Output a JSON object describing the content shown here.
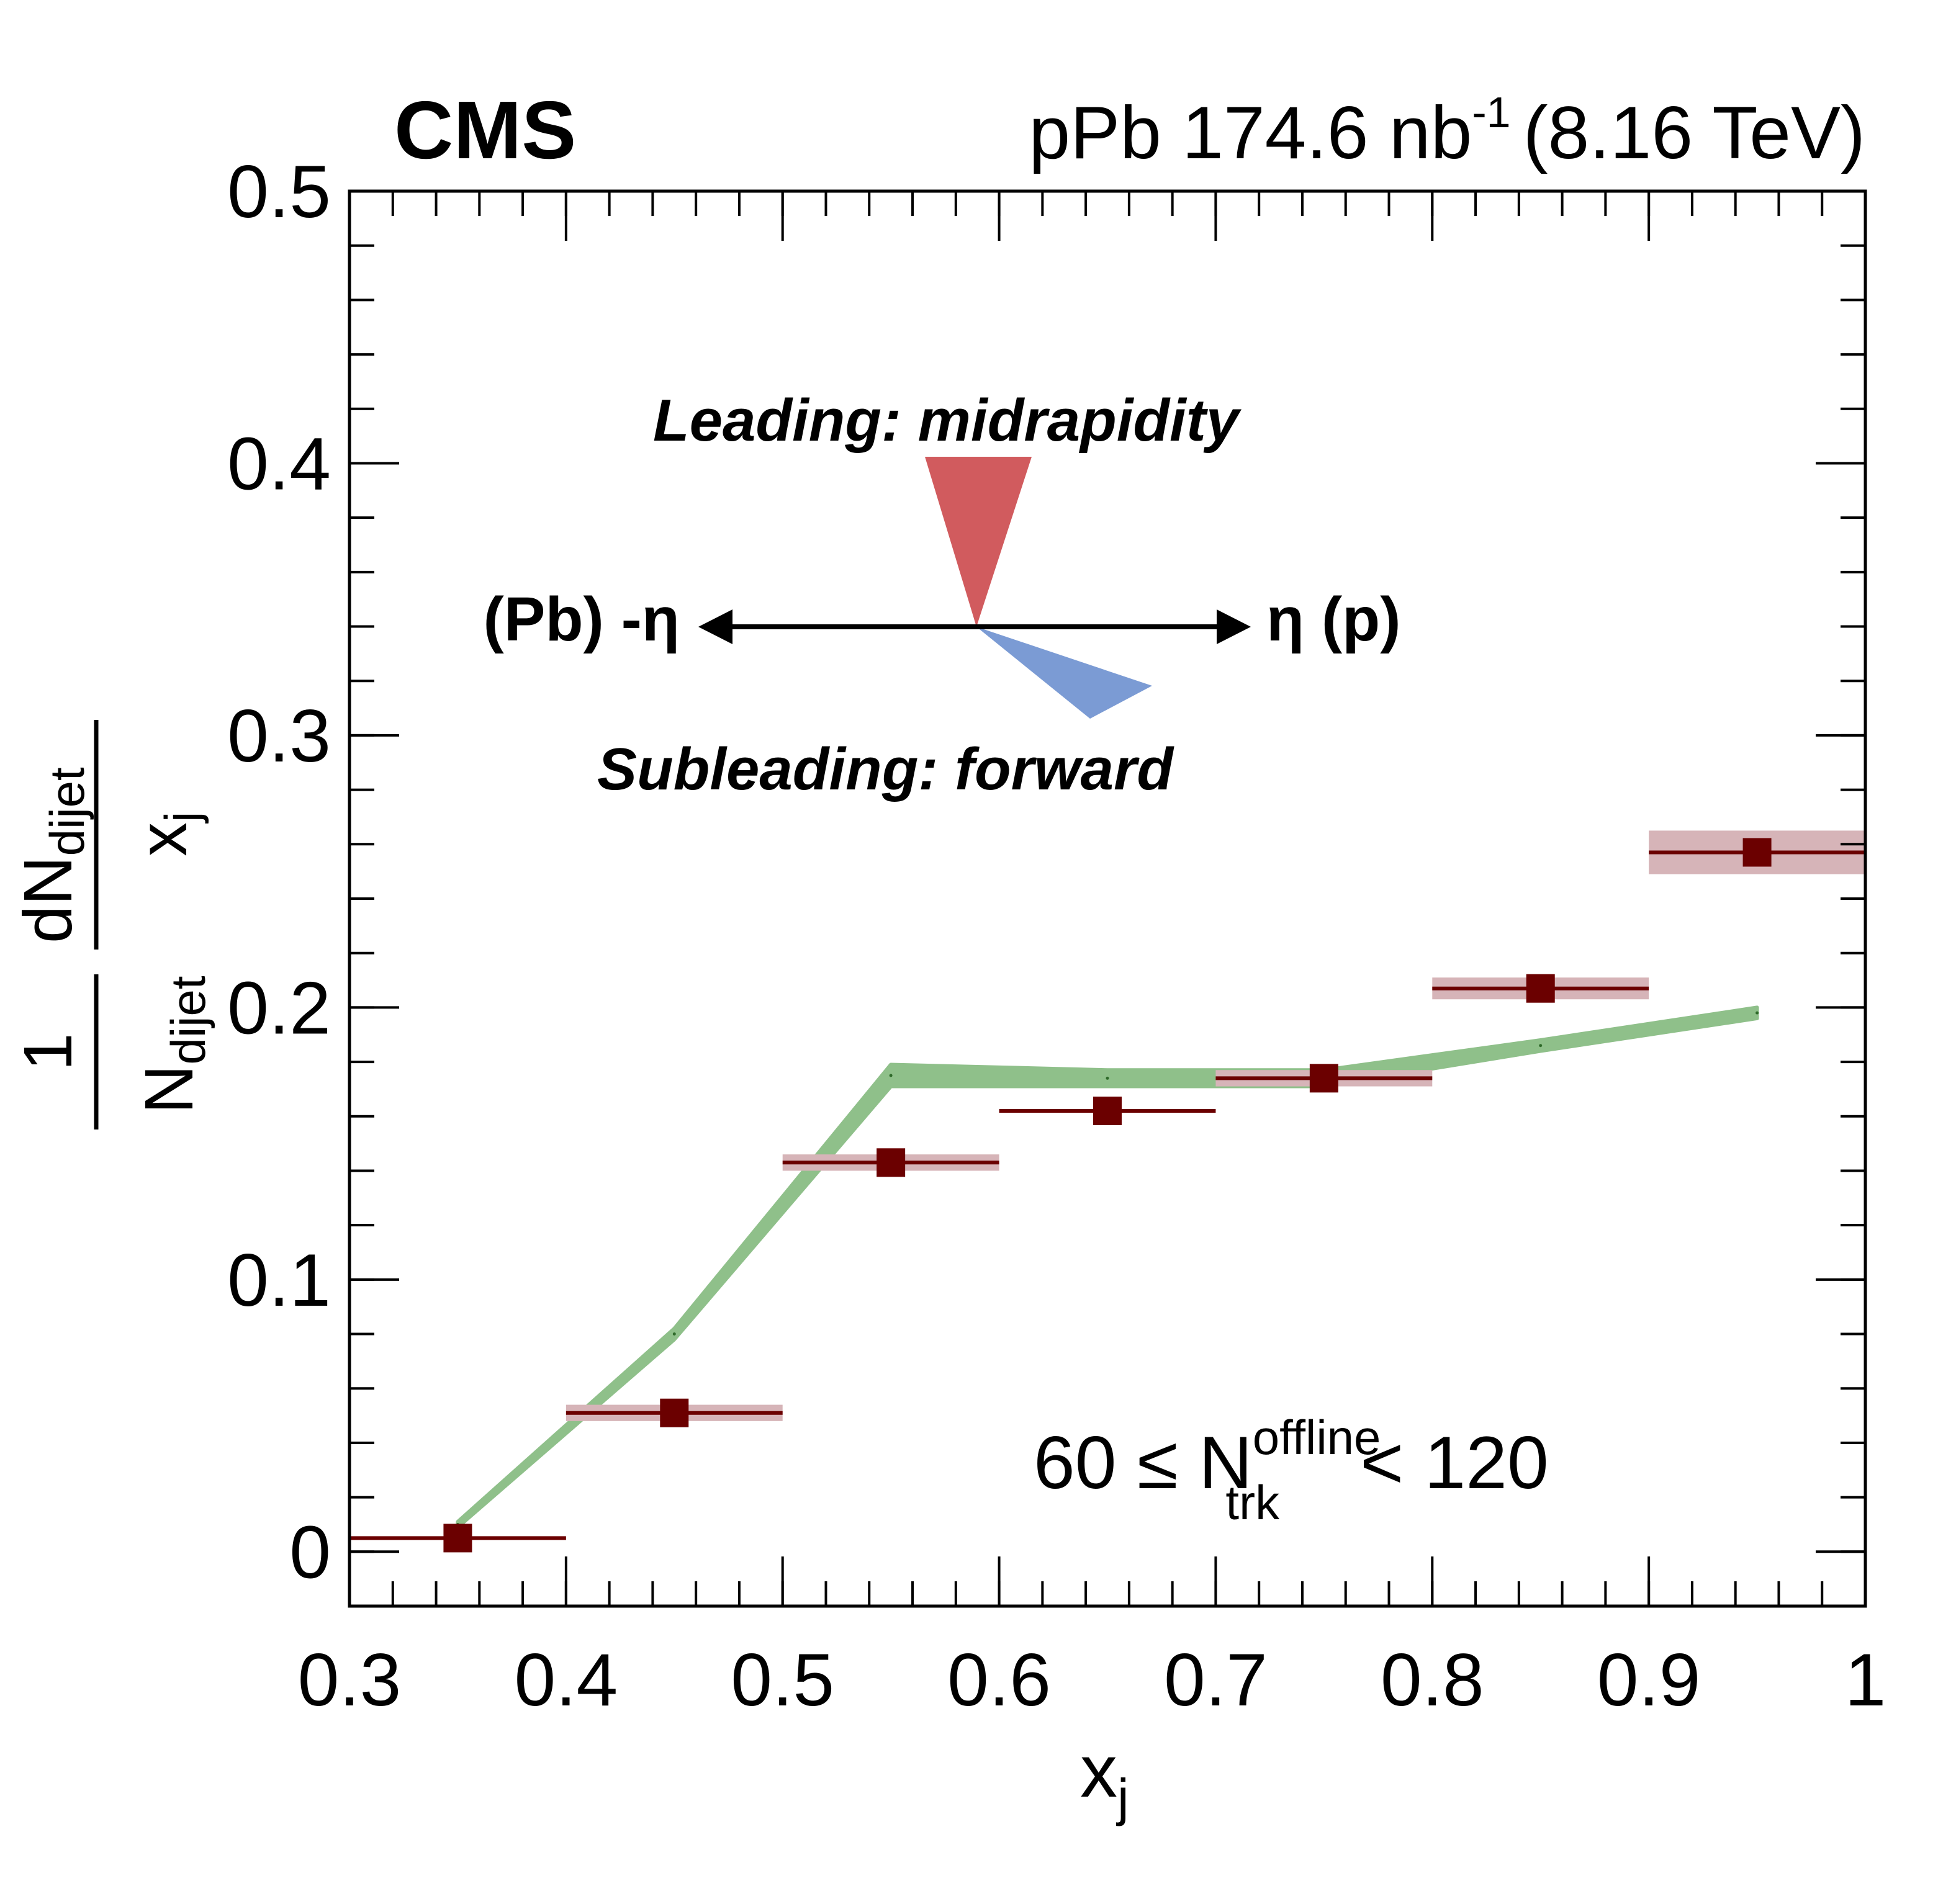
{
  "header": {
    "experiment": "CMS",
    "collision": "pPb 174.6 nb",
    "lumi_exp": "-1",
    "energy": "(8.16 TeV)"
  },
  "annotations": {
    "leading": "Leading: midrapidity",
    "subleading": "Subleading: forward",
    "left_arrow_label": "(Pb) -η",
    "right_arrow_label": "η (p)",
    "selection_lhs": "60 ≤ N",
    "selection_sup": "offline",
    "selection_sub": "trk",
    "selection_rhs": "< 120"
  },
  "colors": {
    "data_marker": "#6b0000",
    "data_syst_band": "#d6b4b8",
    "model_band": "#8fc08a",
    "leading_cone": "#d15b5e",
    "subleading_cone": "#7b9bd4",
    "frame": "#000000"
  },
  "chart_data": {
    "type": "scatter",
    "xlabel": "x",
    "xlabel_sub": "j",
    "ylabel": {
      "frac_num": "1",
      "frac_den": "N",
      "frac_den_sub": "dijet",
      "deriv_num": "dN",
      "deriv_num_sub": "dijet",
      "deriv_den": "x",
      "deriv_den_sub": "j"
    },
    "xlim": [
      0.3,
      1.0
    ],
    "ylim": [
      -0.02,
      0.5
    ],
    "x_major_ticks": [
      0.3,
      0.4,
      0.5,
      0.6,
      0.7,
      0.8,
      0.9,
      1.0
    ],
    "x_tick_labels": [
      "0.3",
      "0.4",
      "0.5",
      "0.6",
      "0.7",
      "0.8",
      "0.9",
      "1"
    ],
    "x_minor_step": 0.02,
    "y_major_ticks": [
      0,
      0.1,
      0.2,
      0.3,
      0.4,
      0.5
    ],
    "y_tick_labels": [
      "0",
      "0.1",
      "0.2",
      "0.3",
      "0.4",
      "0.5"
    ],
    "y_minor_step": 0.02,
    "grid": false,
    "series": [
      {
        "kind": "data",
        "x": [
          0.35,
          0.45,
          0.55,
          0.65,
          0.75,
          0.85,
          0.95
        ],
        "x_bin_low": [
          0.3,
          0.4,
          0.5,
          0.6,
          0.7,
          0.8,
          0.9
        ],
        "x_bin_high": [
          0.4,
          0.5,
          0.6,
          0.7,
          0.8,
          0.9,
          1.0
        ],
        "y": [
          0.005,
          0.051,
          0.143,
          0.162,
          0.174,
          0.207,
          0.257
        ],
        "syst_err": [
          0.0,
          0.003,
          0.003,
          0.0,
          0.003,
          0.004,
          0.008
        ]
      },
      {
        "kind": "model_band",
        "x": [
          0.35,
          0.45,
          0.55,
          0.65,
          0.75,
          0.85,
          0.95
        ],
        "y": [
          0.01,
          0.08,
          0.175,
          0.174,
          0.174,
          0.186,
          0.198
        ],
        "half_width": [
          0.001,
          0.002,
          0.004,
          0.003,
          0.003,
          0.002,
          0.002
        ]
      }
    ]
  }
}
